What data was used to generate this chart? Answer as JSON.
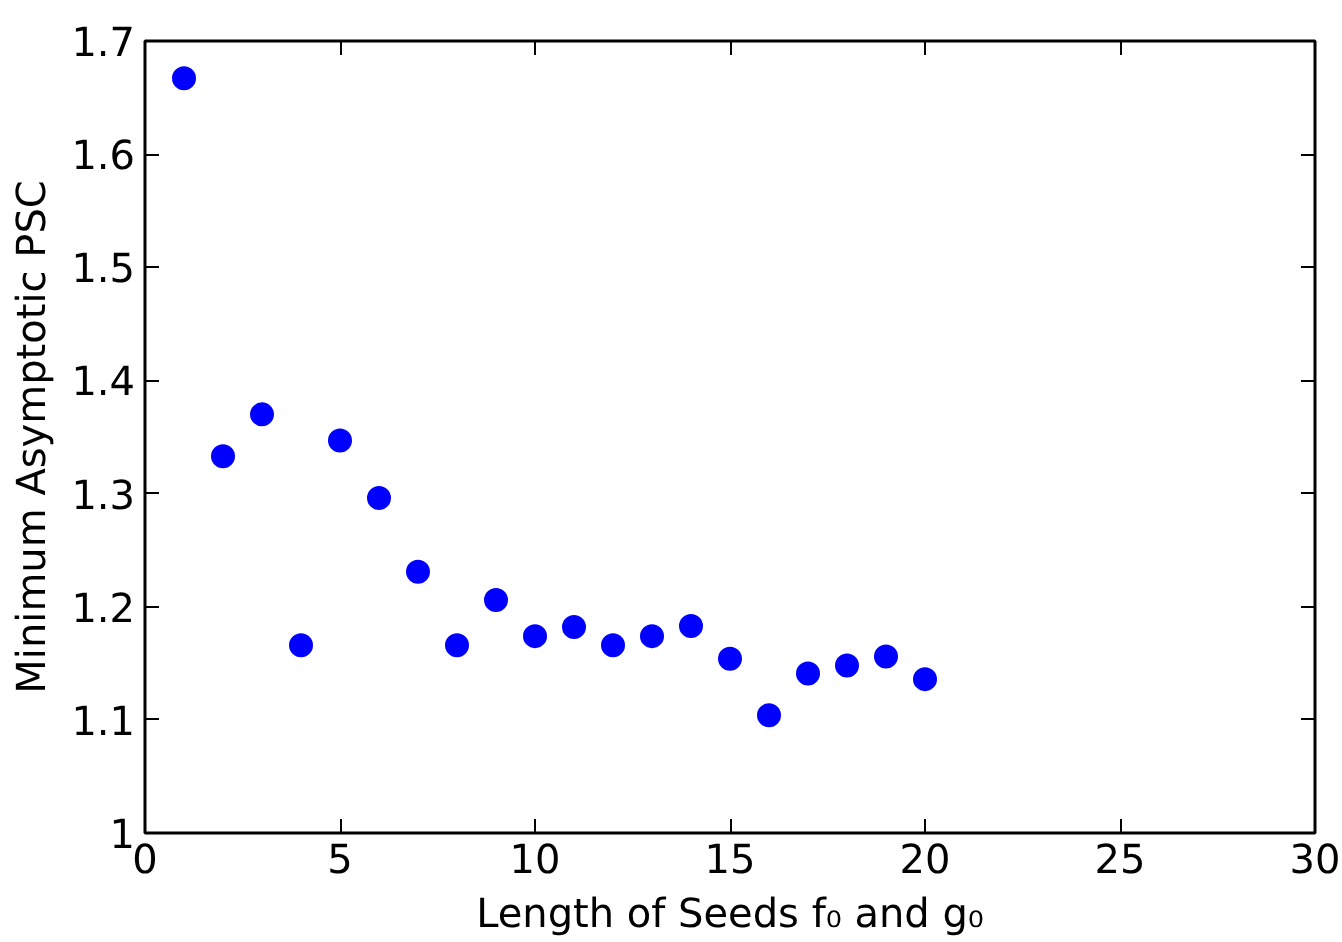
{
  "chart_data": {
    "type": "scatter",
    "xlabel": "Length of Seeds f₀ and g₀",
    "ylabel": "Minimum Asymptotic PSC",
    "x": [
      1,
      2,
      3,
      4,
      5,
      6,
      7,
      8,
      9,
      10,
      11,
      12,
      13,
      14,
      15,
      16,
      17,
      18,
      19,
      20
    ],
    "series": [
      {
        "color": "#0000ff",
        "values": [
          1.667,
          1.333,
          1.37,
          1.166,
          1.347,
          1.296,
          1.231,
          1.166,
          1.206,
          1.174,
          1.182,
          1.166,
          1.174,
          1.183,
          1.154,
          1.104,
          1.141,
          1.148,
          1.156,
          1.136
        ]
      }
    ],
    "xlim": [
      0,
      30
    ],
    "xticks": [
      0,
      5,
      10,
      15,
      20,
      25,
      30
    ],
    "ylim": [
      1,
      1.7
    ],
    "yticks": [
      1,
      1.1,
      1.2,
      1.3,
      1.4,
      1.5,
      1.6,
      1.7
    ],
    "grid": false,
    "marker": "circle"
  }
}
